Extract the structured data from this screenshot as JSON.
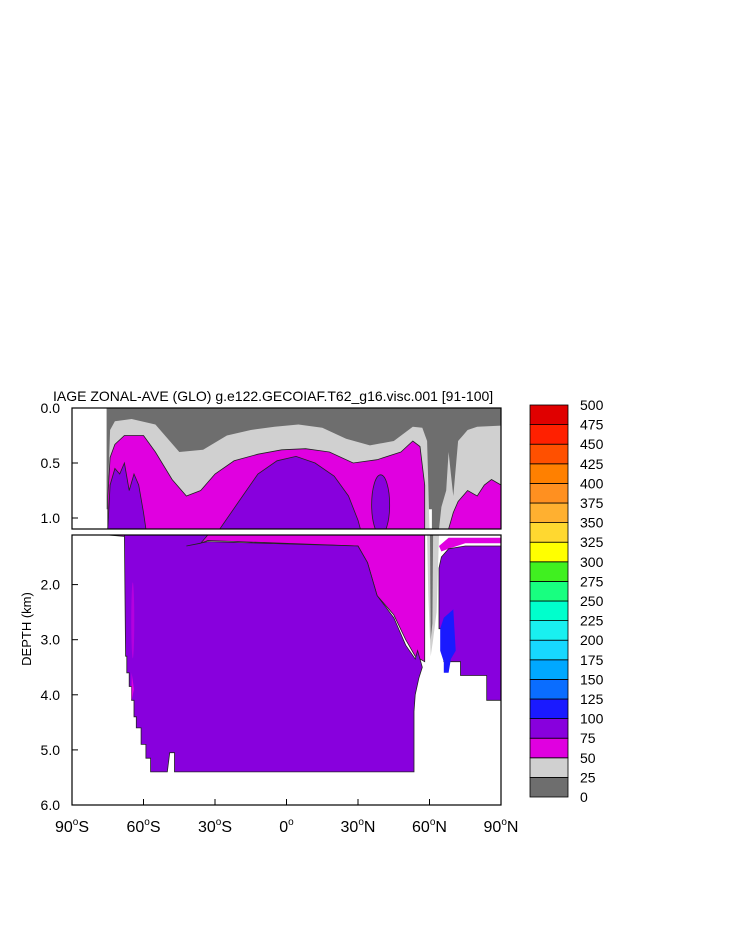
{
  "chart_data": {
    "type": "heatmap",
    "title": "IAGE ZONAL-AVE (GLO) g.e122.GECOIAF.T62_g16.visc.001 [91-100]",
    "xlabel": "",
    "ylabel": "DEPTH (km)",
    "xlim": [
      -90,
      90
    ],
    "ylim_upper_panel_km": [
      0.0,
      1.1
    ],
    "ylim_lower_panel_km": [
      1.1,
      6.0
    ],
    "x_ticks": [
      {
        "value": -90,
        "label": "90",
        "hemi": "S"
      },
      {
        "value": -60,
        "label": "60",
        "hemi": "S"
      },
      {
        "value": -30,
        "label": "30",
        "hemi": "S"
      },
      {
        "value": 0,
        "label": "0",
        "hemi": ""
      },
      {
        "value": 30,
        "label": "30",
        "hemi": "N"
      },
      {
        "value": 60,
        "label": "60",
        "hemi": "N"
      },
      {
        "value": 90,
        "label": "90",
        "hemi": "N"
      }
    ],
    "degree_symbol": "o",
    "y_ticks_upper": [
      {
        "value": 0.0,
        "label": "0.0"
      },
      {
        "value": 0.5,
        "label": "0.5"
      },
      {
        "value": 1.0,
        "label": "1.0"
      }
    ],
    "y_ticks_lower": [
      {
        "value": 2.0,
        "label": "2.0"
      },
      {
        "value": 3.0,
        "label": "3.0"
      },
      {
        "value": 4.0,
        "label": "4.0"
      },
      {
        "value": 5.0,
        "label": "5.0"
      },
      {
        "value": 6.0,
        "label": "6.0"
      }
    ],
    "colorbar": {
      "levels": [
        "0",
        "25",
        "50",
        "75",
        "100",
        "125",
        "150",
        "175",
        "200",
        "225",
        "250",
        "275",
        "300",
        "325",
        "350",
        "375",
        "400",
        "425",
        "450",
        "475",
        "500"
      ],
      "colors": [
        "#6e6e6e",
        "#d0d0d0",
        "#e000e0",
        "#8800dd",
        "#1a1aff",
        "#0a6dff",
        "#00a8ff",
        "#17d8ff",
        "#19f0f0",
        "#00ffcc",
        "#18ff80",
        "#40f020",
        "#ffff00",
        "#ffd830",
        "#ffb030",
        "#ff9020",
        "#ff8000",
        "#ff5000",
        "#ff2000",
        "#e00000"
      ]
    },
    "fields": {
      "land_color": "#ffffff",
      "dominant_band_upper": "50-100",
      "dominant_band_deep": "75-100",
      "max_band_north_atlantic_deep": "100-125"
    }
  }
}
